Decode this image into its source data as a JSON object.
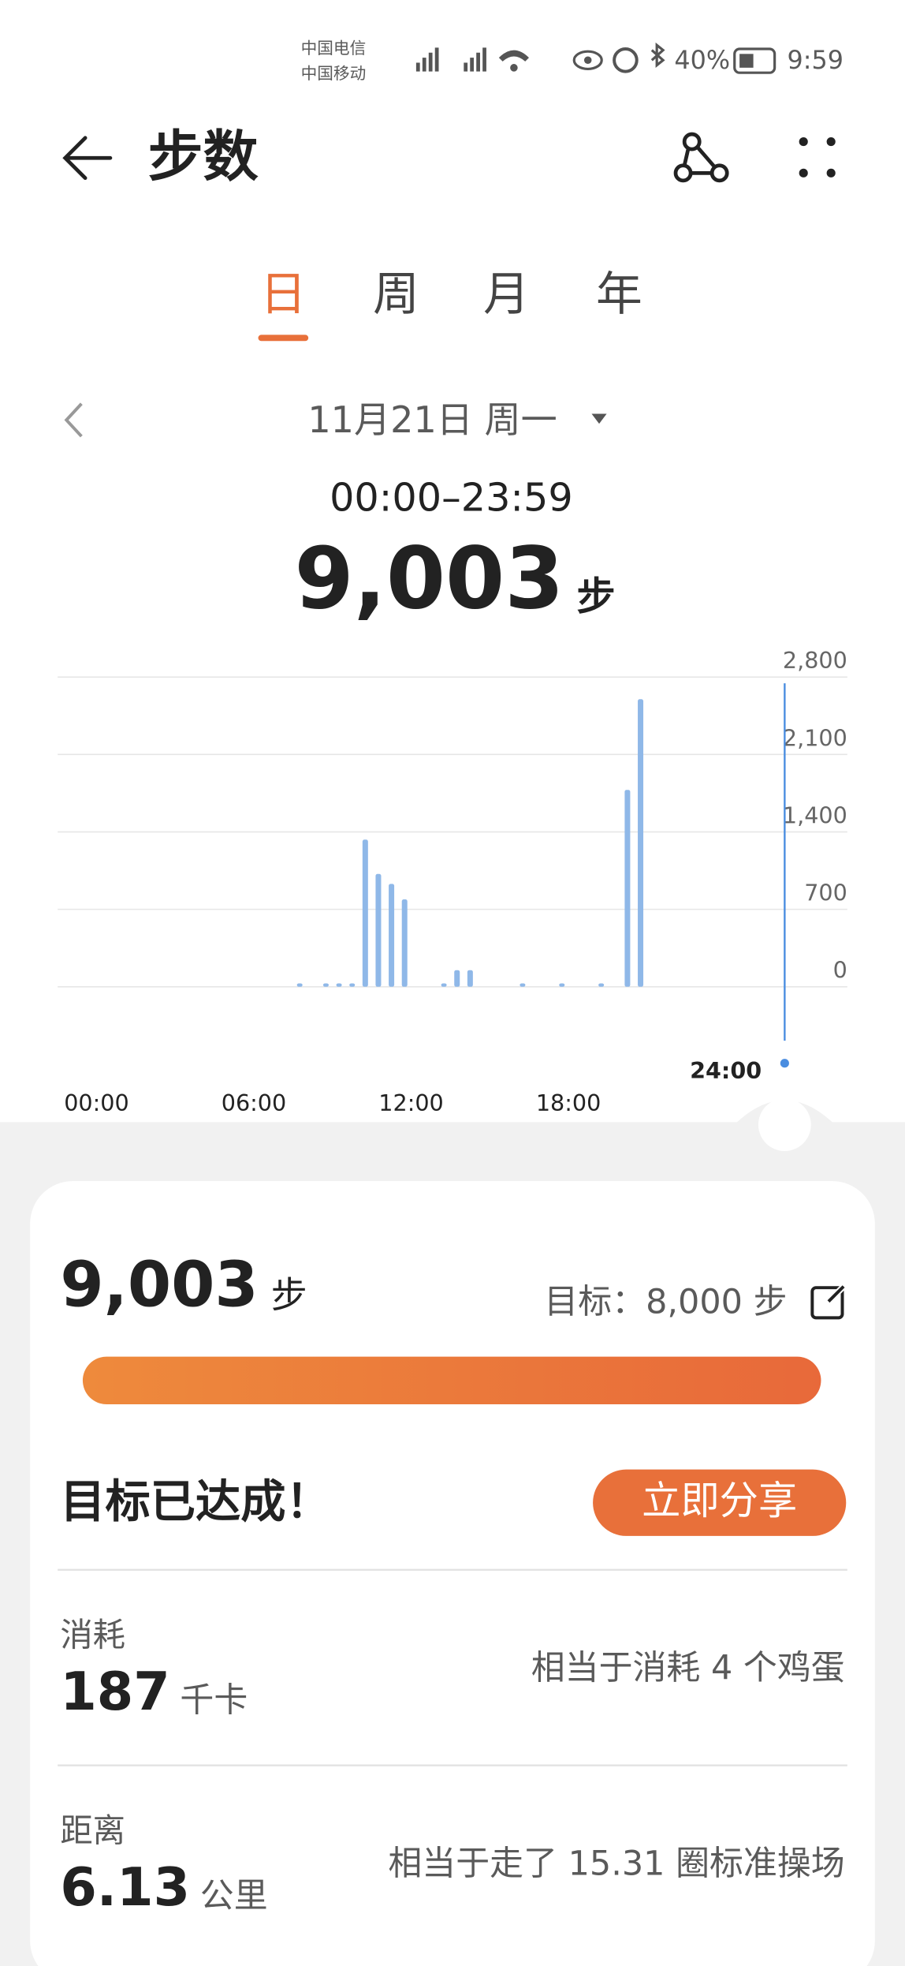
{
  "status_bar": {
    "carrier_1": "中国电信",
    "carrier_2": "中国移动",
    "battery": "40%",
    "time": "9:59"
  },
  "header": {
    "title": "步数"
  },
  "tabs": [
    "日",
    "周",
    "月",
    "年"
  ],
  "date": "11月21日 周一",
  "time_range": "00:00–23:59",
  "total": {
    "value": "9,003",
    "unit": "步"
  },
  "chart_data": {
    "type": "bar",
    "x": [
      7.5,
      8.5,
      9,
      9.5,
      10,
      10.5,
      11,
      11.5,
      13,
      13.5,
      14,
      16,
      17.5,
      19,
      20,
      20.5
    ],
    "values": [
      30,
      30,
      30,
      30,
      1330,
      1020,
      930,
      790,
      30,
      150,
      150,
      30,
      30,
      30,
      1780,
      2600
    ],
    "color": "#8fb8e8",
    "xlim": [
      0,
      24
    ],
    "xticks": [
      {
        "value": 0,
        "label": "00:00"
      },
      {
        "value": 6,
        "label": "06:00"
      },
      {
        "value": 12,
        "label": "12:00"
      },
      {
        "value": 18,
        "label": "18:00"
      }
    ],
    "ylim": [
      0,
      2800
    ],
    "yticks": [
      0,
      700,
      {
        "value": 1400,
        "label": "1,400"
      },
      {
        "value": 2100,
        "label": "2,100"
      },
      {
        "value": 2800,
        "label": "2,800"
      }
    ],
    "grid": true,
    "cursor_label": "24:00"
  },
  "summary": {
    "steps": "9,003",
    "unit": "步",
    "goal": "目标：8,000 步",
    "achievement": "目标已达成！",
    "share_button": "立即分享"
  },
  "stats": [
    {
      "label": "消耗",
      "value": "187",
      "unit": "千卡",
      "note": "相当于消耗 4 个鸡蛋"
    },
    {
      "label": "距离",
      "value": "6.13",
      "unit": "公里",
      "note": "相当于走了 15.31 圈标准操场"
    }
  ]
}
